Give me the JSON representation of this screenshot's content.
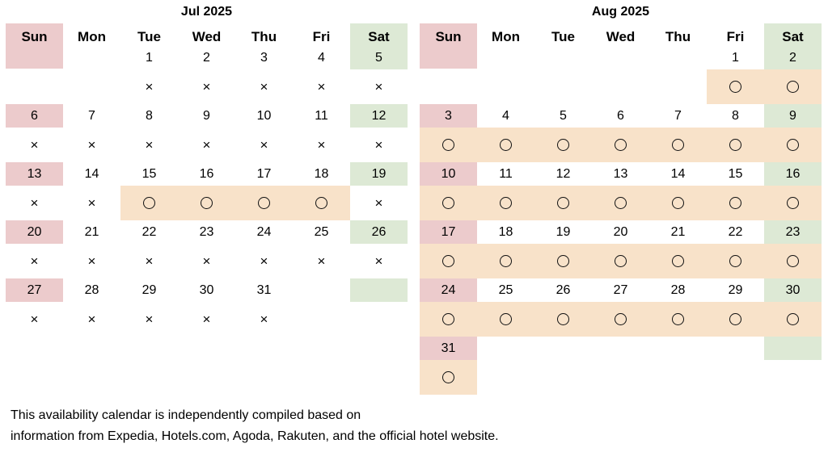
{
  "weekdays": [
    "Sun",
    "Mon",
    "Tue",
    "Wed",
    "Thu",
    "Fri",
    "Sat"
  ],
  "colors": {
    "sunday": "#eccbcc",
    "saturday": "#dde9d5",
    "available": "#f8e2c9"
  },
  "legend_symbols": {
    "available": "○",
    "unavailable": "×"
  },
  "months": [
    {
      "id": "jul",
      "title": "Jul 2025",
      "first_weekday": 2,
      "days": 31,
      "availability": {
        "1": "x",
        "2": "x",
        "3": "x",
        "4": "x",
        "5": "x",
        "6": "x",
        "7": "x",
        "8": "x",
        "9": "x",
        "10": "x",
        "11": "x",
        "12": "x",
        "13": "x",
        "14": "x",
        "15": "o",
        "16": "o",
        "17": "o",
        "18": "o",
        "19": "x",
        "20": "x",
        "21": "x",
        "22": "x",
        "23": "x",
        "24": "x",
        "25": "x",
        "26": "x",
        "27": "x",
        "28": "x",
        "29": "x",
        "30": "x",
        "31": "x"
      }
    },
    {
      "id": "aug",
      "title": "Aug 2025",
      "first_weekday": 5,
      "days": 31,
      "availability": {
        "1": "o",
        "2": "o",
        "3": "o",
        "4": "o",
        "5": "o",
        "6": "o",
        "7": "o",
        "8": "o",
        "9": "o",
        "10": "o",
        "11": "o",
        "12": "o",
        "13": "o",
        "14": "o",
        "15": "o",
        "16": "o",
        "17": "o",
        "18": "o",
        "19": "o",
        "20": "o",
        "21": "o",
        "22": "o",
        "23": "o",
        "24": "o",
        "25": "o",
        "26": "o",
        "27": "o",
        "28": "o",
        "29": "o",
        "30": "o",
        "31": "o"
      }
    }
  ],
  "note": {
    "line1": "This availability calendar is independently compiled based on",
    "line2": "information from Expedia, Hotels.com, Agoda, Rakuten, and the official hotel website."
  }
}
